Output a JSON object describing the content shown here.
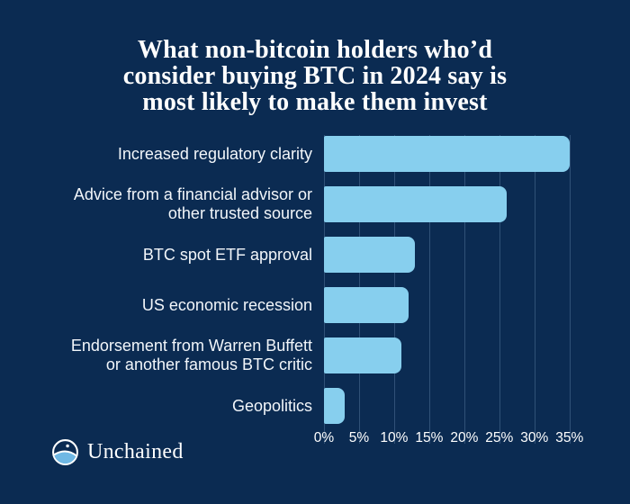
{
  "title": {
    "lines": [
      "What non-bitcoin holders who’d",
      "consider buying BTC in 2024 say is",
      "most likely to make them invest"
    ]
  },
  "chart_data": {
    "type": "bar",
    "orientation": "horizontal",
    "title": "What non-bitcoin holders who’d consider buying BTC in 2024 say is most likely to make them invest",
    "categories": [
      "Increased regulatory clarity",
      "Advice from a financial advisor or\nother trusted source",
      "BTC spot ETF approval",
      "US economic recession",
      "Endorsement from Warren Buffett\nor another famous BTC critic",
      "Geopolitics"
    ],
    "values": [
      35,
      26,
      13,
      12,
      11,
      3
    ],
    "value_suffix": "%",
    "xlabel": "",
    "ylabel": "",
    "x_ticks": [
      {
        "value": 0,
        "label": "0%"
      },
      {
        "value": 5,
        "label": "5%"
      },
      {
        "value": 10,
        "label": "10%"
      },
      {
        "value": 15,
        "label": "15%"
      },
      {
        "value": 20,
        "label": "20%"
      },
      {
        "value": 25,
        "label": "25%"
      },
      {
        "value": 30,
        "label": "30%"
      },
      {
        "value": 35,
        "label": "35%"
      }
    ],
    "xlim": [
      0,
      38.5
    ],
    "grid": true,
    "legend": "none",
    "colors": {
      "bar": "#87CFEE",
      "background": "#0B2B52",
      "grid": "rgba(168,206,238,0.24)",
      "text": "#FFFFFF"
    }
  },
  "footer": {
    "brand": "Unchained"
  }
}
